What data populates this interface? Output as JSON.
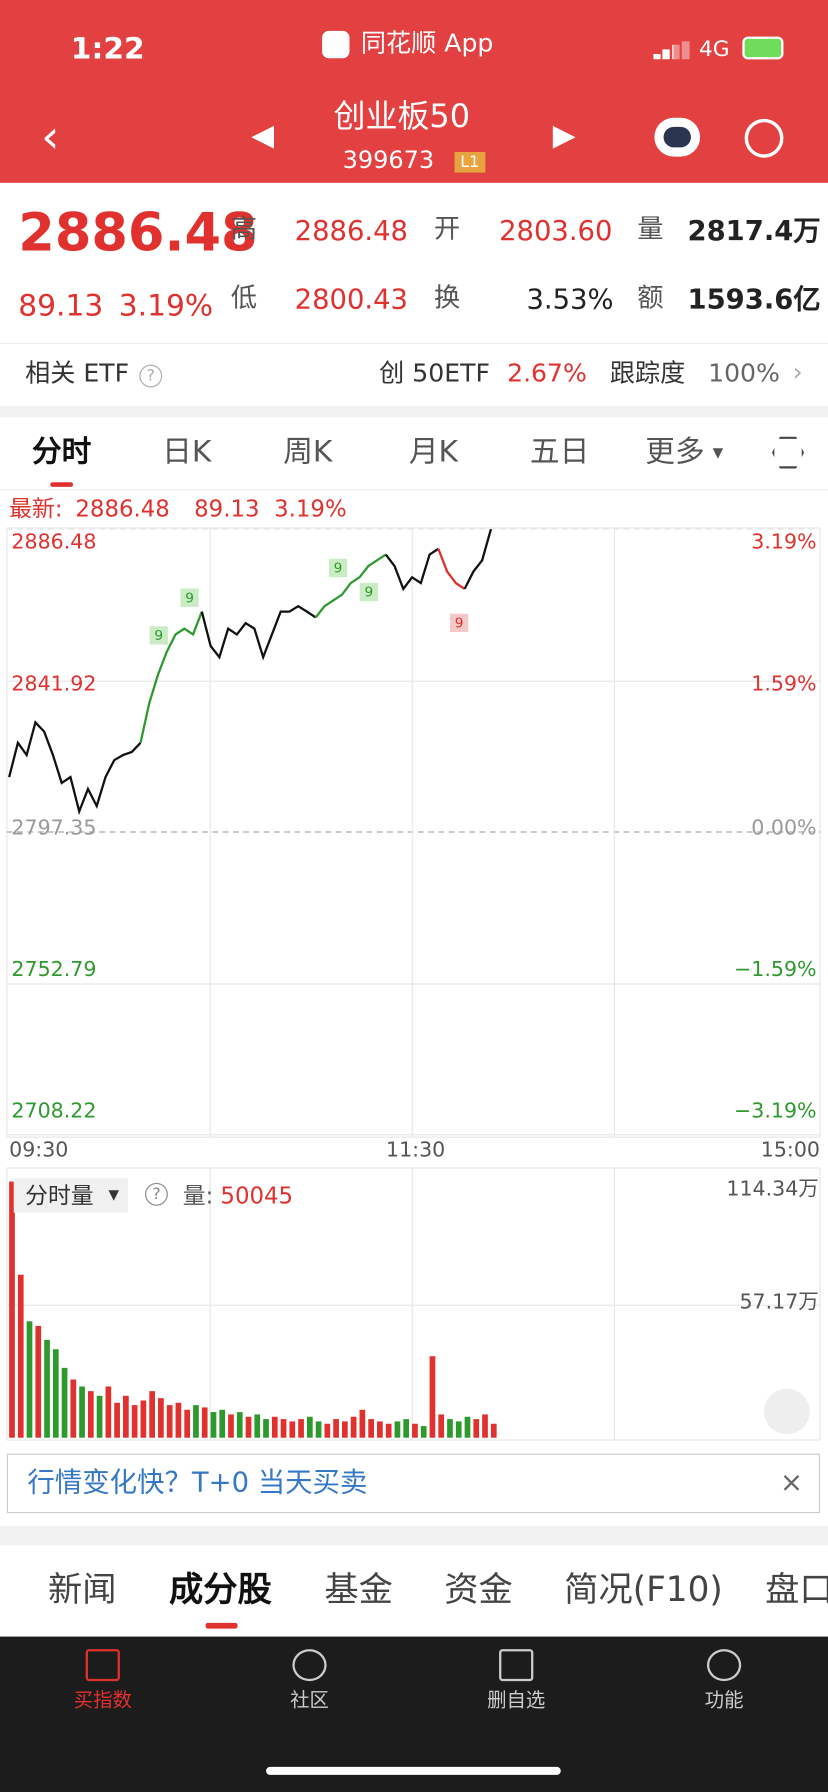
{
  "status": {
    "time": "1:22",
    "app": "同花顺 App",
    "network": "4G"
  },
  "header": {
    "title": "创业板50",
    "code": "399673",
    "badge": "L1"
  },
  "quote": {
    "price": "2886.48",
    "change": "89.13",
    "pct": "3.19%",
    "fields": [
      {
        "label": "高",
        "value": "2886.48"
      },
      {
        "label": "开",
        "value": "2803.60"
      },
      {
        "label": "量",
        "value": "2817.4万"
      },
      {
        "label": "低",
        "value": "2800.43"
      },
      {
        "label": "换",
        "value": "3.53%"
      },
      {
        "label": "额",
        "value": "1593.6亿"
      }
    ]
  },
  "etf": {
    "label": "相关 ETF",
    "name": "创 50ETF",
    "change": "2.67%",
    "tracking_label": "跟踪度",
    "tracking": "100%"
  },
  "tabs": [
    "分时",
    "日K",
    "周K",
    "月K",
    "五日",
    "更多"
  ],
  "latest": {
    "label": "最新:",
    "price": "2886.48",
    "change": "89.13",
    "pct": "3.19%"
  },
  "chart": {
    "ylim": [
      2708.22,
      2886.48
    ],
    "left_labels": [
      "2886.48",
      "2841.92",
      "2797.35",
      "2752.79",
      "2708.22"
    ],
    "right_labels": [
      "3.19%",
      "1.59%",
      "0.00%",
      "−1.59%",
      "−3.19%"
    ],
    "xticks": [
      "09:30",
      "11:30",
      "15:00"
    ],
    "markers": [
      "9",
      "9",
      "9",
      "9",
      "9"
    ],
    "price": [
      2813.5,
      2823.6,
      2820,
      2829.6,
      2826.9,
      2820,
      2811.8,
      2813.5,
      2803.4,
      2810,
      2805,
      2813.5,
      2818.5,
      2820,
      2820.9,
      2823.6,
      2835.3,
      2843.7,
      2850.4,
      2855.5,
      2857.2,
      2855.5,
      2862.2,
      2852.1,
      2848.8,
      2857.2,
      2855.5,
      2858.8,
      2857.2,
      2848.8,
      2855.5,
      2862.2,
      2862.2,
      2863.8,
      2862.2,
      2860.5,
      2863.8,
      2865.5,
      2867.2,
      2870.6,
      2872.3,
      2875.6,
      2877.3,
      2879,
      2875.6,
      2868.9,
      2872.3,
      2870.6,
      2879,
      2880.7,
      2874,
      2870.6,
      2868.9,
      2874,
      2877.3,
      2886.48
    ]
  },
  "volume": {
    "selector": "分时量",
    "label": "量:",
    "value": "50045",
    "ylim": [
      0,
      114.34
    ],
    "ticks": [
      "114.34万",
      "57.17万"
    ],
    "values": [
      110,
      70,
      50,
      48,
      42,
      38,
      30,
      25,
      22,
      20,
      18,
      22,
      15,
      18,
      14,
      16,
      20,
      17,
      14,
      15,
      12,
      14,
      13,
      11,
      12,
      10,
      11,
      9,
      10,
      8,
      9,
      8,
      7,
      8,
      9,
      7,
      6,
      8,
      7,
      9,
      12,
      8,
      7,
      6,
      7,
      8,
      6,
      5,
      35,
      10,
      8,
      7,
      9,
      8,
      10,
      6
    ]
  },
  "banner": "行情变化快？T+0 当天买卖",
  "bottom_tabs": [
    "新闻",
    "成分股",
    "基金",
    "资金",
    "简况(F10)",
    "盘口"
  ],
  "nav": [
    "买指数",
    "社区",
    "删自选",
    "功能"
  ]
}
